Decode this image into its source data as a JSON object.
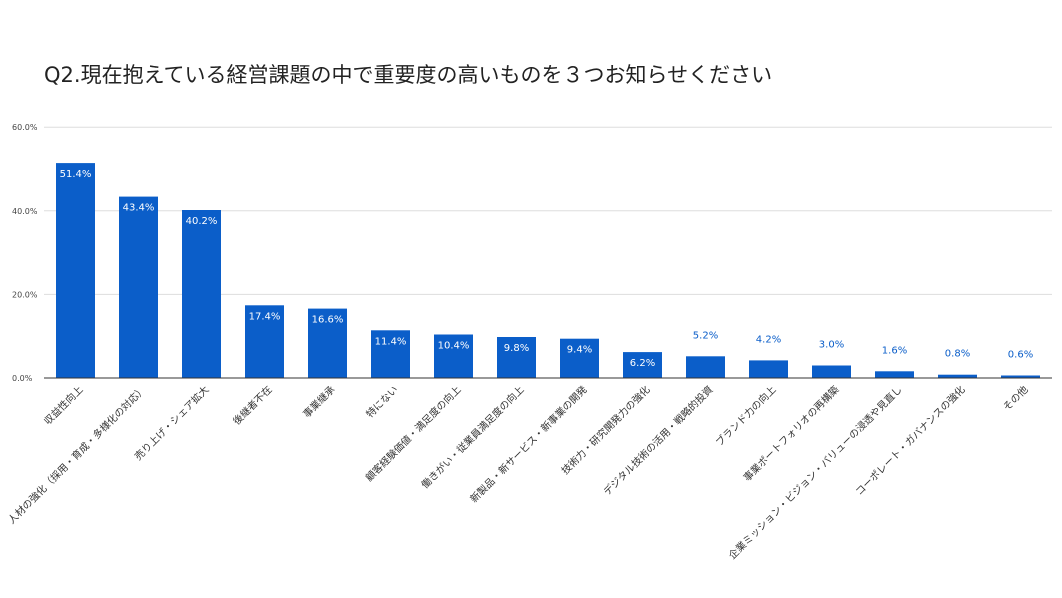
{
  "chart_data": {
    "type": "bar",
    "title": "Q2.現在抱えている経営課題の中で重要度の高いものを３つお知らせください",
    "xlabel": "",
    "ylabel": "",
    "ylim": [
      0,
      60
    ],
    "yticks": [
      "0.0%",
      "20.0%",
      "40.0%",
      "60.0%"
    ],
    "ytick_values": [
      0,
      20,
      40,
      60
    ],
    "grid": true,
    "legend": "none",
    "bar_color": "#0b5ec9",
    "label_inside_color": "#ffffff",
    "label_outside_color": "#0b5ec9",
    "categories": [
      "収益性向上",
      "人材の強化（採用・育成・多様化の対応）",
      "売り上げ・シェア拡大",
      "後継者不在",
      "事業継承",
      "特にない",
      "顧客経験価値・満足度の向上",
      "働きがい・従業員満足度の向上",
      "新製品・新サービス・新事業の開発",
      "技術力・研究開発力の強化",
      "デジタル技術の活用・戦略的投資",
      "ブランド力の向上",
      "事業ポートフォリオの再構築",
      "企業ミッション・ビジョン・バリューの浸透や見直し",
      "コーポレート・ガバナンスの強化",
      "その他"
    ],
    "values": [
      51.4,
      43.4,
      40.2,
      17.4,
      16.6,
      11.4,
      10.4,
      9.8,
      9.4,
      6.2,
      5.2,
      4.2,
      3.0,
      1.6,
      0.8,
      0.6
    ],
    "data_labels": [
      "51.4%",
      "43.4%",
      "40.2%",
      "17.4%",
      "16.6%",
      "11.4%",
      "10.4%",
      "9.8%",
      "9.4%",
      "6.2%",
      "5.2%",
      "4.2%",
      "3.0%",
      "1.6%",
      "0.8%",
      "0.6%"
    ]
  }
}
